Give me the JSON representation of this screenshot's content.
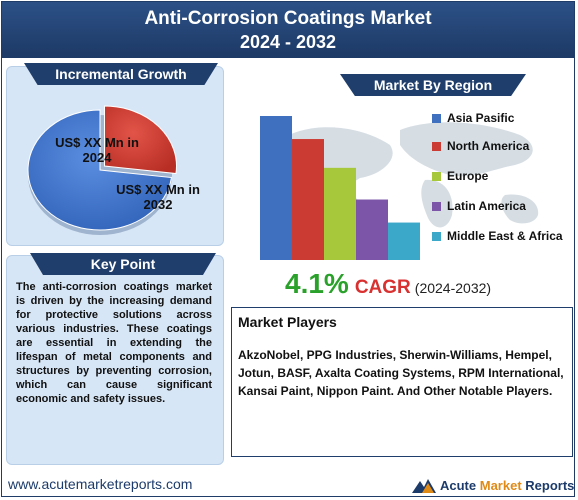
{
  "header": {
    "title_line1": "Anti-Corrosion Coatings Market",
    "title_line2": "2024 - 2032"
  },
  "incremental_growth": {
    "ribbon_label": "Incremental Growth",
    "slices": [
      {
        "label": "US$ XX Mn in 2024",
        "value": 27,
        "color": "#d63a2f"
      },
      {
        "label": "US$ XX Mn in 2032",
        "value": 73,
        "color": "#3a72c9"
      }
    ],
    "label_2024_a": "US$ XX Mn in",
    "label_2024_b": "2024",
    "label_2032_a": "US$ XX Mn in",
    "label_2032_b": "2032"
  },
  "key_point": {
    "ribbon_label": "Key Point",
    "text": "The anti-corrosion coatings market is driven by the increasing demand for protective solutions across various industries. These coatings are essential in extending the lifespan of metal components and structures by preventing corrosion, which can cause significant economic and safety issues."
  },
  "market_by_region": {
    "ribbon_label": "Market By Region"
  },
  "chart_data": {
    "type": "bar",
    "title": "Market By Region",
    "categories": [
      "Asia Pasific",
      "North America",
      "Europe",
      "Latin America",
      "Middle East & Africa"
    ],
    "values": [
      100,
      84,
      64,
      42,
      26
    ],
    "colors": [
      "#3f6fbf",
      "#cc3b33",
      "#a6c83a",
      "#7d55a8",
      "#3ba8c9"
    ],
    "ylim": [
      0,
      100
    ],
    "grid": false,
    "legend_position": "right"
  },
  "cagr": {
    "value": "4.1%",
    "label": "CAGR",
    "years": "(2024-2032)"
  },
  "market_players": {
    "title": "Market Players",
    "text": "AkzoNobel, PPG Industries, Sherwin-Williams, Hempel, Jotun, BASF, Axalta Coating Systems, RPM International, Kansai Paint, Nippon Paint. And Other Notable Players."
  },
  "footer": {
    "url": "www.acutemarketreports.com",
    "brand_a": "Acute",
    "brand_b": "Market",
    "brand_c": "Reports"
  }
}
